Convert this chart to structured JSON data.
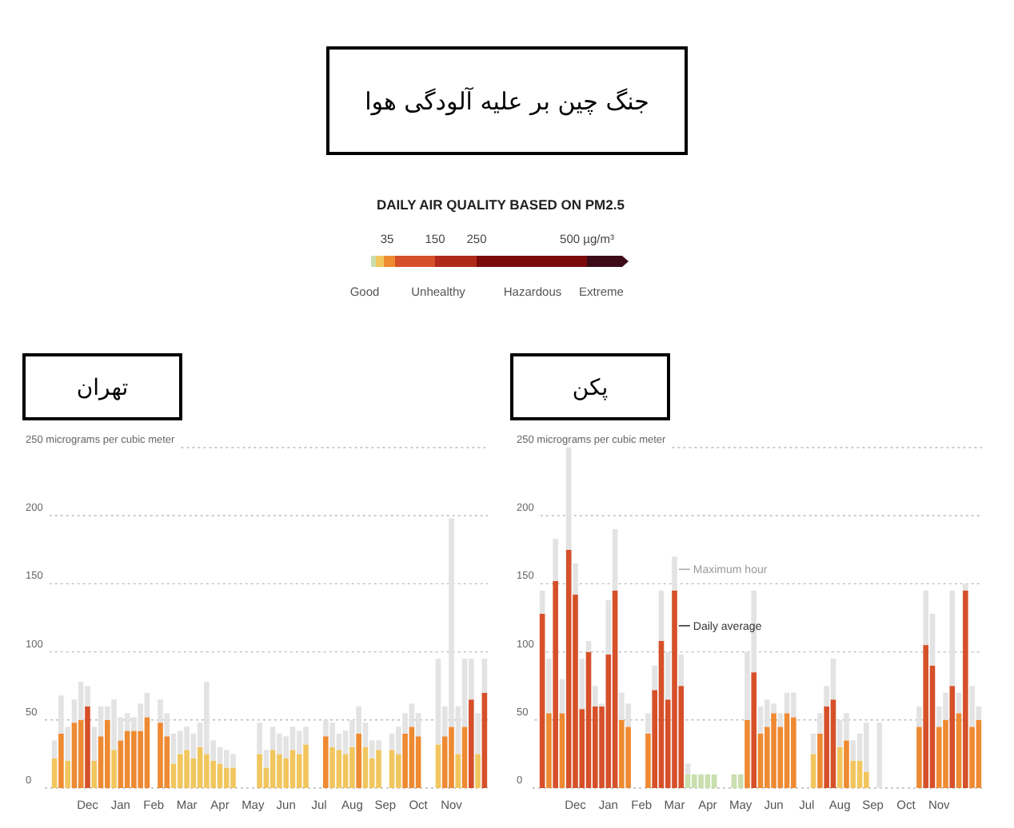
{
  "chart_data": [
    {
      "type": "other",
      "title": "جنگ چین بر علیه آلودگی هوا",
      "subtitle": "DAILY AIR QUALITY BASED ON PM2.5",
      "colors": [
        "#c9dfae",
        "#f1c65e",
        "#ee8a32",
        "#d6502a",
        "#b02a1c",
        "#7a0a0a",
        "#3d0a17"
      ],
      "annotations": [
        "35",
        "150",
        "250",
        "500 µg/m³",
        "Good",
        "Unhealthy",
        "Hazardous",
        "Extreme"
      ]
    },
    {
      "type": "bar",
      "title": "تهران",
      "stacked": true,
      "ylim": [
        0,
        250
      ],
      "grid": "y",
      "categories": [
        null,
        null,
        null,
        null,
        null,
        "Dec",
        null,
        null,
        null,
        null,
        "Jan",
        null,
        null,
        null,
        null,
        "Feb",
        null,
        null,
        null,
        null,
        "Mar",
        null,
        null,
        null,
        null,
        "Apr",
        null,
        null,
        null,
        null,
        "May",
        null,
        null,
        null,
        null,
        "Jun",
        null,
        null,
        null,
        null,
        "Jul",
        null,
        null,
        null,
        null,
        "Aug",
        null,
        null,
        null,
        null,
        "Sep",
        null,
        null,
        null,
        null,
        "Oct",
        null,
        null,
        null,
        null,
        "Nov",
        null,
        null,
        null,
        null,
        null
      ],
      "yticks": [
        0,
        50,
        100,
        150,
        200,
        {
          "value": 250,
          "label": "250 micrograms per cubic meter"
        }
      ],
      "series": [
        {
          "values": [
            22,
            40,
            20,
            48,
            50,
            60,
            20,
            38,
            50,
            28,
            35,
            42,
            42,
            42,
            52,
            null,
            48,
            38,
            18,
            25,
            28,
            22,
            30,
            25,
            20,
            18,
            15,
            15,
            null,
            null,
            null,
            25,
            15,
            28,
            25,
            22,
            28,
            25,
            32,
            null,
            null,
            38,
            30,
            28,
            25,
            30,
            40,
            30,
            22,
            28,
            null,
            28,
            25,
            40,
            45,
            38,
            null,
            null,
            32,
            38,
            45,
            25,
            45,
            65,
            25,
            70
          ],
          "colors": [
            "#f1c65e",
            "#ee8a32",
            "#f1c65e",
            "#ee8a32",
            "#ee8a32",
            "#d6502a",
            "#f1c65e",
            "#ee8a32",
            "#ee8a32",
            "#f1c65e",
            "#ee8a32",
            "#ee8a32",
            "#ee8a32",
            "#ee8a32",
            "#ee8a32",
            null,
            "#ee8a32",
            "#ee8a32",
            "#f1c65e",
            "#f1c65e",
            "#f1c65e",
            "#f1c65e",
            "#f1c65e",
            "#f1c65e",
            "#f1c65e",
            "#f1c65e",
            "#f1c65e",
            "#f1c65e",
            null,
            null,
            null,
            "#f1c65e",
            "#f1c65e",
            "#f1c65e",
            "#f1c65e",
            "#f1c65e",
            "#f1c65e",
            "#f1c65e",
            "#f1c65e",
            null,
            null,
            "#ee8a32",
            "#f1c65e",
            "#f1c65e",
            "#f1c65e",
            "#f1c65e",
            "#ee8a32",
            "#f1c65e",
            "#f1c65e",
            "#f1c65e",
            null,
            "#f1c65e",
            "#f1c65e",
            "#ee8a32",
            "#ee8a32",
            "#ee8a32",
            null,
            null,
            "#f1c65e",
            "#ee8a32",
            "#ee8a32",
            "#f1c65e",
            "#ee8a32",
            "#d6502a",
            "#f1c65e",
            "#d6502a"
          ]
        },
        {
          "color": "#e3e3e3",
          "values": [
            13,
            28,
            25,
            17,
            28,
            15,
            25,
            22,
            10,
            37,
            17,
            13,
            10,
            20,
            18,
            null,
            17,
            17,
            22,
            17,
            17,
            18,
            18,
            53,
            15,
            12,
            13,
            10,
            null,
            null,
            null,
            23,
            13,
            17,
            15,
            16,
            17,
            17,
            13,
            null,
            null,
            12,
            18,
            12,
            17,
            20,
            20,
            18,
            13,
            7,
            null,
            12,
            20,
            15,
            17,
            17,
            null,
            null,
            63,
            22,
            153,
            35,
            50,
            30,
            30,
            25
          ]
        }
      ]
    },
    {
      "type": "bar",
      "title": "پکن",
      "stacked": true,
      "ylim": [
        0,
        250
      ],
      "grid": "y",
      "categories": [
        null,
        null,
        null,
        null,
        null,
        "Dec",
        null,
        null,
        null,
        null,
        "Jan",
        null,
        null,
        null,
        null,
        "Feb",
        null,
        null,
        null,
        null,
        "Mar",
        null,
        null,
        null,
        null,
        "Apr",
        null,
        null,
        null,
        null,
        "May",
        null,
        null,
        null,
        null,
        "Jun",
        null,
        null,
        null,
        null,
        "Jul",
        null,
        null,
        null,
        null,
        "Aug",
        null,
        null,
        null,
        null,
        "Sep",
        null,
        null,
        null,
        null,
        "Oct",
        null,
        null,
        null,
        null,
        "Nov",
        null,
        null,
        null,
        null,
        null,
        null
      ],
      "yticks": [
        0,
        50,
        100,
        150,
        200,
        {
          "value": 250,
          "label": "250 micrograms per cubic meter"
        }
      ],
      "series": [
        {
          "name": "Daily average",
          "values": [
            128,
            55,
            152,
            55,
            175,
            142,
            58,
            100,
            60,
            60,
            98,
            145,
            50,
            45,
            null,
            null,
            40,
            72,
            108,
            65,
            145,
            75,
            10,
            10,
            10,
            10,
            10,
            null,
            null,
            10,
            10,
            50,
            85,
            40,
            45,
            55,
            45,
            55,
            52,
            null,
            null,
            25,
            40,
            60,
            65,
            30,
            35,
            20,
            20,
            12,
            null,
            null,
            null,
            null,
            null,
            null,
            null,
            45,
            105,
            90,
            45,
            50,
            75,
            55,
            145,
            45,
            50
          ],
          "colors": [
            "#d6502a",
            "#ee8a32",
            "#d6502a",
            "#ee8a32",
            "#d6502a",
            "#d6502a",
            "#d6502a",
            "#d6502a",
            "#d6502a",
            "#d6502a",
            "#d6502a",
            "#d6502a",
            "#ee8a32",
            "#ee8a32",
            null,
            null,
            "#ee8a32",
            "#d6502a",
            "#d6502a",
            "#d6502a",
            "#d6502a",
            "#d6502a",
            "#c9dfae",
            "#c9dfae",
            "#c9dfae",
            "#c9dfae",
            "#c9dfae",
            null,
            null,
            "#c9dfae",
            "#c9dfae",
            "#ee8a32",
            "#d6502a",
            "#ee8a32",
            "#ee8a32",
            "#ee8a32",
            "#ee8a32",
            "#ee8a32",
            "#ee8a32",
            null,
            null,
            "#f1c65e",
            "#ee8a32",
            "#d6502a",
            "#d6502a",
            "#f1c65e",
            "#ee8a32",
            "#f1c65e",
            "#f1c65e",
            "#f1c65e",
            null,
            null,
            null,
            null,
            null,
            null,
            null,
            "#ee8a32",
            "#d6502a",
            "#d6502a",
            "#ee8a32",
            "#ee8a32",
            "#d6502a",
            "#ee8a32",
            "#d6502a",
            "#ee8a32",
            "#ee8a32"
          ]
        },
        {
          "name": "Maximum hour",
          "color": "#e3e3e3",
          "values": [
            17,
            40,
            31,
            25,
            75,
            23,
            37,
            8,
            15,
            2,
            40,
            45,
            20,
            17,
            null,
            null,
            15,
            18,
            37,
            35,
            25,
            23,
            8,
            null,
            null,
            null,
            null,
            null,
            null,
            null,
            null,
            50,
            60,
            20,
            20,
            7,
            10,
            15,
            18,
            null,
            null,
            15,
            15,
            15,
            30,
            20,
            20,
            15,
            20,
            36,
            null,
            48,
            null,
            null,
            null,
            null,
            null,
            15,
            40,
            38,
            15,
            20,
            70,
            15,
            5,
            30,
            10
          ]
        }
      ]
    }
  ]
}
